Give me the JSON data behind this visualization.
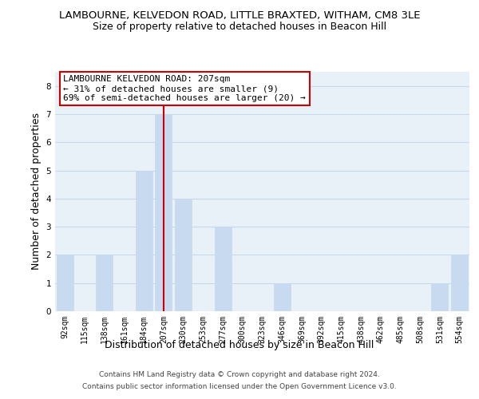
{
  "title": "LAMBOURNE, KELVEDON ROAD, LITTLE BRAXTED, WITHAM, CM8 3LE",
  "subtitle": "Size of property relative to detached houses in Beacon Hill",
  "xlabel": "Distribution of detached houses by size in Beacon Hill",
  "ylabel": "Number of detached properties",
  "categories": [
    "92sqm",
    "115sqm",
    "138sqm",
    "161sqm",
    "184sqm",
    "207sqm",
    "230sqm",
    "253sqm",
    "277sqm",
    "300sqm",
    "323sqm",
    "346sqm",
    "369sqm",
    "392sqm",
    "415sqm",
    "438sqm",
    "462sqm",
    "485sqm",
    "508sqm",
    "531sqm",
    "554sqm"
  ],
  "values": [
    2,
    0,
    2,
    0,
    5,
    7,
    4,
    0,
    3,
    0,
    0,
    1,
    0,
    0,
    0,
    0,
    0,
    0,
    0,
    1,
    2
  ],
  "bar_color": "#c8daef",
  "bar_edge_color": "#c8daef",
  "highlight_index": 5,
  "highlight_line_color": "#cc0000",
  "ylim": [
    0,
    8.5
  ],
  "yticks": [
    0,
    1,
    2,
    3,
    4,
    5,
    6,
    7,
    8
  ],
  "annotation_title": "LAMBOURNE KELVEDON ROAD: 207sqm",
  "annotation_line1": "← 31% of detached houses are smaller (9)",
  "annotation_line2": "69% of semi-detached houses are larger (20) →",
  "annotation_box_edge": "#cc0000",
  "footer_line1": "Contains HM Land Registry data © Crown copyright and database right 2024.",
  "footer_line2": "Contains public sector information licensed under the Open Government Licence v3.0.",
  "bg_color": "#ffffff",
  "plot_bg_color": "#e8f0f8",
  "grid_color": "#c8d8e8",
  "title_fontsize": 9.5,
  "subtitle_fontsize": 9,
  "label_fontsize": 9,
  "tick_fontsize": 7,
  "annot_fontsize": 8,
  "footer_fontsize": 6.5
}
